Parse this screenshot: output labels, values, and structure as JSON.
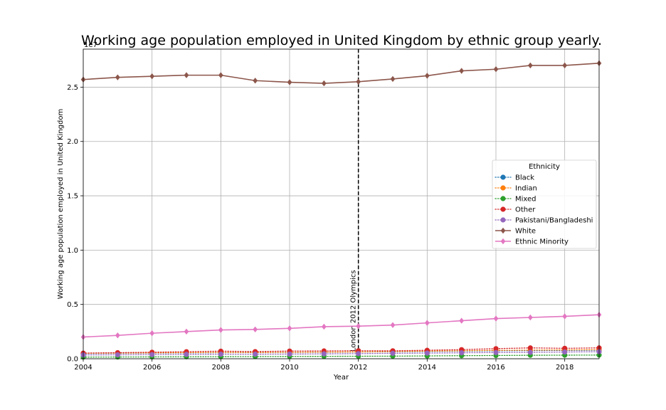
{
  "chart_data": {
    "type": "line",
    "title": "Working age population employed in United Kingdom by ethnic group yearly.",
    "xlabel": "Year",
    "ylabel": "Working age population employed in United Kingdom",
    "y_multiplier": "1e7",
    "xlim": [
      2004,
      2019
    ],
    "ylim": [
      0,
      28500000
    ],
    "x_ticks": [
      2004,
      2006,
      2008,
      2010,
      2012,
      2014,
      2016,
      2018
    ],
    "x_tick_labels": [
      "2004",
      "2006",
      "2008",
      "2010",
      "2012",
      "2014",
      "2016",
      "2018"
    ],
    "y_ticks": [
      0,
      5000000,
      10000000,
      15000000,
      20000000,
      25000000
    ],
    "y_tick_labels": [
      "0.0",
      "0.5",
      "1.0",
      "1.5",
      "2.0",
      "2.5"
    ],
    "grid": true,
    "legend_title": "Ethnicity",
    "legend_position": "center-right",
    "x": [
      2004,
      2005,
      2006,
      2007,
      2008,
      2009,
      2010,
      2011,
      2012,
      2013,
      2014,
      2015,
      2016,
      2017,
      2018,
      2019
    ],
    "annotation": {
      "x": 2012,
      "text": "London 2012 Olympics",
      "style": "dashed-vertical-line"
    },
    "series": [
      {
        "name": "Black",
        "color": "#1f77b4",
        "style": "dotted",
        "marker": "circle",
        "values": [
          480000,
          500000,
          520000,
          540000,
          560000,
          570000,
          580000,
          600000,
          620000,
          640000,
          670000,
          700000,
          730000,
          750000,
          770000,
          790000
        ]
      },
      {
        "name": "Indian",
        "color": "#ff7f0e",
        "style": "dotted",
        "marker": "circle",
        "values": [
          500000,
          520000,
          540000,
          560000,
          580000,
          570000,
          590000,
          610000,
          630000,
          660000,
          700000,
          730000,
          770000,
          790000,
          810000,
          830000
        ]
      },
      {
        "name": "Mixed",
        "color": "#2ca02c",
        "style": "dotted",
        "marker": "circle",
        "values": [
          150000,
          160000,
          170000,
          180000,
          190000,
          200000,
          210000,
          220000,
          230000,
          240000,
          260000,
          280000,
          300000,
          320000,
          330000,
          340000
        ]
      },
      {
        "name": "Other",
        "color": "#d62728",
        "style": "dotted",
        "marker": "circle",
        "values": [
          520000,
          560000,
          600000,
          650000,
          700000,
          660000,
          710000,
          720000,
          740000,
          730000,
          780000,
          840000,
          930000,
          1000000,
          960000,
          1000000
        ]
      },
      {
        "name": "Pakistani/Bangladeshi",
        "color": "#9467bd",
        "style": "dotted",
        "marker": "circle",
        "values": [
          350000,
          360000,
          380000,
          400000,
          420000,
          420000,
          430000,
          450000,
          470000,
          500000,
          520000,
          550000,
          570000,
          590000,
          620000,
          650000
        ]
      },
      {
        "name": "White",
        "color": "#8c564b",
        "style": "solid",
        "marker": "diamond",
        "values": [
          25700000,
          25900000,
          26000000,
          26100000,
          26100000,
          25600000,
          25450000,
          25350000,
          25500000,
          25750000,
          26050000,
          26500000,
          26650000,
          27000000,
          27000000,
          27200000
        ]
      },
      {
        "name": "Ethnic Minority",
        "color": "#e377c2",
        "style": "solid",
        "marker": "diamond",
        "values": [
          2000000,
          2150000,
          2350000,
          2500000,
          2650000,
          2700000,
          2800000,
          2950000,
          3000000,
          3100000,
          3300000,
          3500000,
          3700000,
          3800000,
          3900000,
          4050000
        ]
      }
    ]
  }
}
